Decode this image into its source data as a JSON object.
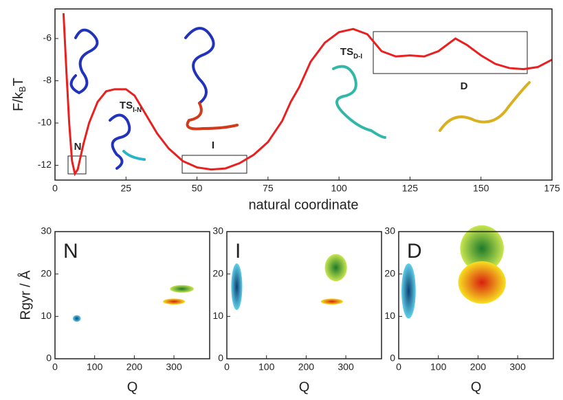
{
  "chart_data": [
    {
      "type": "line",
      "xlabel": "natural coordinate",
      "ylabel": {
        "text": "F/k",
        "sub": "B",
        "tail": "T"
      },
      "x": [
        3,
        4,
        5,
        6,
        7,
        8,
        9,
        10,
        12,
        15,
        18,
        21,
        25,
        28,
        32,
        36,
        40,
        45,
        50,
        55,
        60,
        65,
        70,
        75,
        80,
        83,
        86,
        90,
        95,
        100,
        105,
        110,
        115,
        120,
        125,
        130,
        135,
        141,
        145,
        150,
        155,
        160,
        165,
        170,
        175
      ],
      "series": [
        {
          "color": "#e8201f",
          "values": [
            -4.8,
            -7.5,
            -10,
            -11.8,
            -12.4,
            -12.2,
            -11.6,
            -11,
            -10,
            -9,
            -8.5,
            -8.4,
            -8.4,
            -8.7,
            -9.6,
            -10.5,
            -11.2,
            -11.8,
            -12.1,
            -12.2,
            -12.15,
            -11.9,
            -11.5,
            -10.9,
            -9.9,
            -9,
            -8.3,
            -7.1,
            -6.2,
            -5.7,
            -5.55,
            -5.8,
            -6.6,
            -6.85,
            -6.8,
            -6.85,
            -6.6,
            -6.0,
            -6.3,
            -6.8,
            -7.2,
            -7.4,
            -7.45,
            -7.35,
            -7.0
          ]
        }
      ],
      "xlim": [
        0,
        175
      ],
      "xticks": [
        0,
        25,
        50,
        75,
        100,
        125,
        150,
        175
      ],
      "ylim": [
        -12.7,
        -4.6
      ],
      "yticks": [
        -12,
        -10,
        -8,
        -6
      ],
      "annotations": [
        {
          "text": "N"
        },
        {
          "text": "TS",
          "sub": "I-N"
        },
        {
          "text": "I"
        },
        {
          "text": "TS",
          "sub": "D-I"
        },
        {
          "text": "D"
        }
      ]
    },
    {
      "type": "density",
      "panel_label": "N",
      "xlabel": "Q",
      "ylabel": "Rgyr / Å",
      "xlim": [
        0,
        390
      ],
      "xticks": [
        0,
        100,
        200,
        300
      ],
      "ylim": [
        0,
        30
      ],
      "yticks": [
        0,
        10,
        20,
        30
      ],
      "blobs": [
        {
          "x": 55,
          "y": 9.5,
          "sx": 10,
          "sy": 0.8,
          "color": "#0d3f73",
          "edge": "#5fd0e8"
        },
        {
          "x": 300,
          "y": 13.5,
          "sx": 28,
          "sy": 0.7,
          "color": "#d81f10",
          "edge": "#f7e020"
        },
        {
          "x": 320,
          "y": 16.5,
          "sx": 30,
          "sy": 0.9,
          "color": "#1d7a2a",
          "edge": "#c9e650"
        }
      ]
    },
    {
      "type": "density",
      "panel_label": "I",
      "xlabel": "Q",
      "xlim": [
        0,
        390
      ],
      "xticks": [
        0,
        100,
        200,
        300
      ],
      "ylim": [
        0,
        30
      ],
      "yticks": [
        0,
        10,
        20,
        30
      ],
      "blobs": [
        {
          "x": 25,
          "y": 17,
          "sx": 14,
          "sy": 5.5,
          "color": "#0d3f73",
          "edge": "#5fd0e8"
        },
        {
          "x": 265,
          "y": 13.5,
          "sx": 28,
          "sy": 0.7,
          "color": "#d81f10",
          "edge": "#f7e020"
        },
        {
          "x": 275,
          "y": 21.5,
          "sx": 28,
          "sy": 3.2,
          "color": "#1d7a2a",
          "edge": "#c9e650"
        }
      ]
    },
    {
      "type": "density",
      "panel_label": "D",
      "xlabel": "Q",
      "xlim": [
        0,
        390
      ],
      "xticks": [
        0,
        100,
        200,
        300
      ],
      "ylim": [
        0,
        30
      ],
      "yticks": [
        0,
        10,
        20,
        30
      ],
      "blobs": [
        {
          "x": 210,
          "y": 26,
          "sx": 55,
          "sy": 5.5,
          "color": "#1d7a2a",
          "edge": "#c9e650"
        },
        {
          "x": 25,
          "y": 16,
          "sx": 18,
          "sy": 6.5,
          "color": "#0d3f73",
          "edge": "#5fd0e8"
        },
        {
          "x": 210,
          "y": 18,
          "sx": 60,
          "sy": 5,
          "color": "#d81f10",
          "edge": "#f7e020"
        }
      ]
    }
  ]
}
